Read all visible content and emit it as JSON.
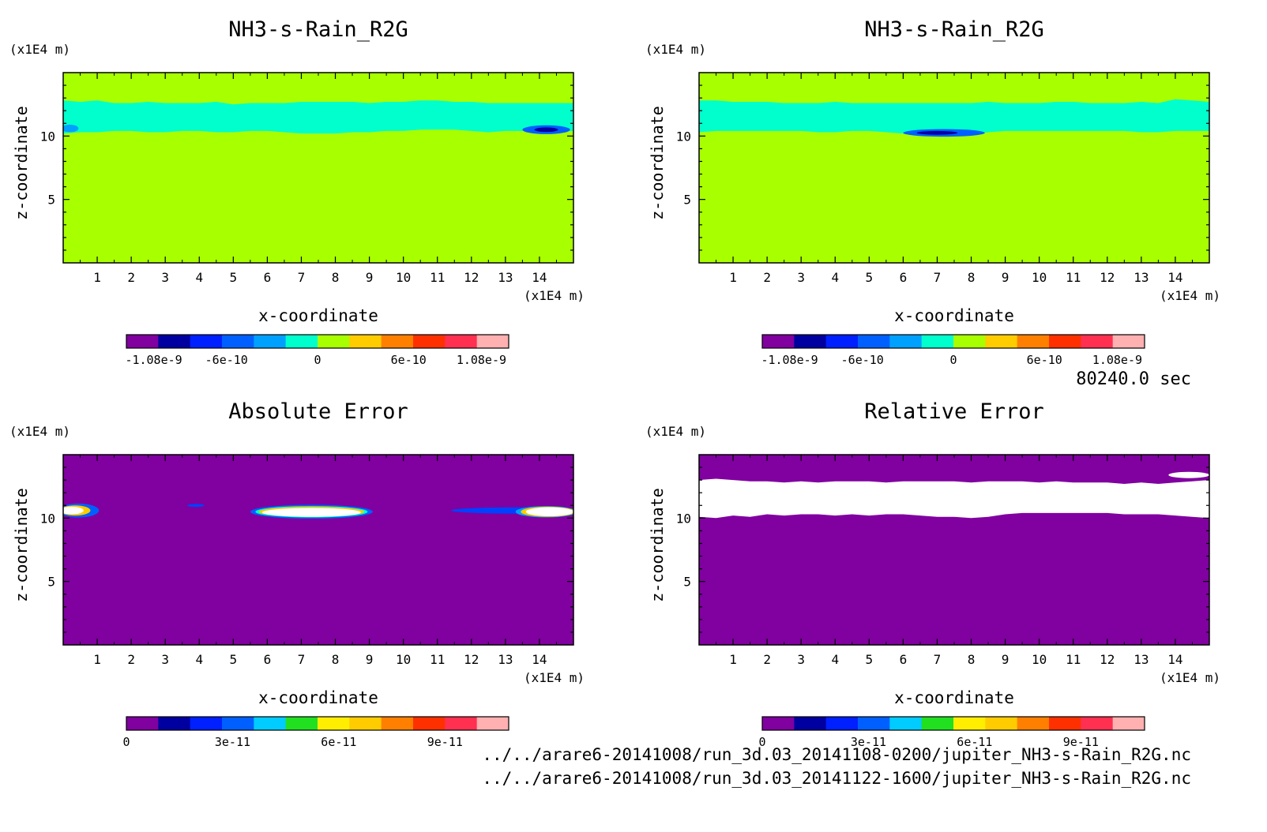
{
  "time_label": "80240.0 sec",
  "footer": {
    "file1": "../../arare6-20141008/run_3d.03_20141108-0200/jupiter_NH3-s-Rain_R2G.nc",
    "file2": "../../arare6-20141008/run_3d.03_20141122-1600/jupiter_NH3-s-Rain_R2G.nc"
  },
  "chart_data": [
    {
      "type": "heatmap",
      "title": "NH3-s-Rain_R2G",
      "xlabel": "x-coordinate",
      "ylabel": "z-coordinate",
      "x_unit": "(x1E4 m)",
      "y_unit": "(x1E4 m)",
      "xlim": [
        0,
        15
      ],
      "ylim": [
        0,
        15
      ],
      "x_ticks": [
        1,
        2,
        3,
        4,
        5,
        6,
        7,
        8,
        9,
        10,
        11,
        12,
        13,
        14
      ],
      "y_ticks": [
        5,
        10
      ],
      "background_color": "#a8ff00",
      "regions": [
        {
          "color": "#00ffcc",
          "x": [
            0,
            0.5,
            1,
            1.5,
            2,
            2.5,
            3,
            3.5,
            4,
            4.5,
            5,
            5.5,
            6,
            6.5,
            7,
            7.5,
            8,
            8.5,
            9,
            9.5,
            10,
            10.5,
            11,
            11.5,
            12,
            12.5,
            13,
            13.5,
            14,
            14.5,
            15
          ],
          "top": [
            12.8,
            12.7,
            12.8,
            12.6,
            12.6,
            12.7,
            12.6,
            12.6,
            12.6,
            12.7,
            12.5,
            12.6,
            12.6,
            12.6,
            12.7,
            12.7,
            12.7,
            12.7,
            12.6,
            12.7,
            12.7,
            12.8,
            12.8,
            12.7,
            12.7,
            12.6,
            12.6,
            12.6,
            12.6,
            12.6,
            12.6
          ],
          "bottom": [
            10.2,
            10.3,
            10.3,
            10.4,
            10.4,
            10.3,
            10.3,
            10.4,
            10.4,
            10.3,
            10.3,
            10.4,
            10.4,
            10.3,
            10.2,
            10.2,
            10.2,
            10.3,
            10.3,
            10.4,
            10.4,
            10.5,
            10.5,
            10.5,
            10.4,
            10.3,
            10.4,
            10.4,
            10.3,
            10.3,
            10.4
          ]
        },
        {
          "color": "#0060ff",
          "cx": 14.2,
          "cy": 10.5,
          "rx": 0.7,
          "ry": 0.35
        },
        {
          "color": "#0000a0",
          "cx": 14.2,
          "cy": 10.5,
          "rx": 0.35,
          "ry": 0.18
        },
        {
          "color": "#00a0ff",
          "cx": 0.2,
          "cy": 10.6,
          "rx": 0.25,
          "ry": 0.3
        }
      ],
      "colorbar": {
        "colors": [
          "#8000a0",
          "#0000a0",
          "#0020ff",
          "#0060ff",
          "#00a0ff",
          "#00ffcc",
          "#a8ff00",
          "#ffcc00",
          "#ff8000",
          "#ff3000",
          "#ff3050",
          "#ffb0b0"
        ],
        "tick_labels": [
          "-1.08e-9",
          "-6e-10",
          "0",
          "6e-10",
          "1.08e-9"
        ],
        "tick_values": [
          -1.08e-09,
          -6e-10,
          0,
          6e-10,
          1.08e-09
        ],
        "range": [
          -1.26e-09,
          1.26e-09
        ]
      }
    },
    {
      "type": "heatmap",
      "title": "NH3-s-Rain_R2G",
      "xlabel": "x-coordinate",
      "ylabel": "z-coordinate",
      "x_unit": "(x1E4 m)",
      "y_unit": "(x1E4 m)",
      "xlim": [
        0,
        15
      ],
      "ylim": [
        0,
        15
      ],
      "x_ticks": [
        1,
        2,
        3,
        4,
        5,
        6,
        7,
        8,
        9,
        10,
        11,
        12,
        13,
        14
      ],
      "y_ticks": [
        5,
        10
      ],
      "background_color": "#a8ff00",
      "regions": [
        {
          "color": "#00ffcc",
          "x": [
            0,
            0.5,
            1,
            1.5,
            2,
            2.5,
            3,
            3.5,
            4,
            4.5,
            5,
            5.5,
            6,
            6.5,
            7,
            7.5,
            8,
            8.5,
            9,
            9.5,
            10,
            10.5,
            11,
            11.5,
            12,
            12.5,
            13,
            13.5,
            14,
            14.5,
            15
          ],
          "top": [
            12.8,
            12.8,
            12.7,
            12.7,
            12.7,
            12.6,
            12.6,
            12.6,
            12.7,
            12.6,
            12.6,
            12.6,
            12.6,
            12.6,
            12.6,
            12.6,
            12.6,
            12.7,
            12.6,
            12.6,
            12.6,
            12.7,
            12.7,
            12.6,
            12.6,
            12.6,
            12.7,
            12.6,
            12.9,
            12.8,
            12.7
          ],
          "bottom": [
            10.3,
            10.4,
            10.4,
            10.4,
            10.4,
            10.4,
            10.4,
            10.3,
            10.3,
            10.4,
            10.4,
            10.3,
            10.2,
            10.1,
            10.0,
            10.0,
            10.1,
            10.3,
            10.4,
            10.4,
            10.4,
            10.4,
            10.4,
            10.4,
            10.4,
            10.4,
            10.3,
            10.3,
            10.4,
            10.4,
            10.4
          ]
        },
        {
          "color": "#0060ff",
          "cx": 7.2,
          "cy": 10.25,
          "rx": 1.2,
          "ry": 0.3
        },
        {
          "color": "#0000a0",
          "cx": 7.0,
          "cy": 10.25,
          "rx": 0.6,
          "ry": 0.15
        }
      ],
      "colorbar": {
        "colors": [
          "#8000a0",
          "#0000a0",
          "#0020ff",
          "#0060ff",
          "#00a0ff",
          "#00ffcc",
          "#a8ff00",
          "#ffcc00",
          "#ff8000",
          "#ff3000",
          "#ff3050",
          "#ffb0b0"
        ],
        "tick_labels": [
          "-1.08e-9",
          "-6e-10",
          "0",
          "6e-10",
          "1.08e-9"
        ],
        "tick_values": [
          -1.08e-09,
          -6e-10,
          0,
          6e-10,
          1.08e-09
        ],
        "range": [
          -1.26e-09,
          1.26e-09
        ]
      }
    },
    {
      "type": "heatmap",
      "title": "Absolute Error",
      "xlabel": "x-coordinate",
      "ylabel": "z-coordinate",
      "x_unit": "(x1E4 m)",
      "y_unit": "(x1E4 m)",
      "xlim": [
        0,
        15
      ],
      "ylim": [
        0,
        15
      ],
      "x_ticks": [
        1,
        2,
        3,
        4,
        5,
        6,
        7,
        8,
        9,
        10,
        11,
        12,
        13,
        14
      ],
      "y_ticks": [
        5,
        10
      ],
      "background_color": "#8000a0",
      "regions": [
        {
          "color": "#0060ff",
          "cx": 0.45,
          "cy": 10.6,
          "rx": 0.6,
          "ry": 0.55
        },
        {
          "color": "#ffcc00",
          "cx": 0.35,
          "cy": 10.6,
          "rx": 0.45,
          "ry": 0.4
        },
        {
          "color": "#ffffff",
          "cx": 0.25,
          "cy": 10.6,
          "rx": 0.35,
          "ry": 0.3
        },
        {
          "color": "#0040ff",
          "cx": 3.9,
          "cy": 11.0,
          "rx": 0.25,
          "ry": 0.12
        },
        {
          "color": "#0060ff",
          "cx": 7.3,
          "cy": 10.5,
          "rx": 1.8,
          "ry": 0.55
        },
        {
          "color": "#00ffcc",
          "cx": 7.3,
          "cy": 10.5,
          "rx": 1.65,
          "ry": 0.45
        },
        {
          "color": "#ffcc00",
          "cx": 7.3,
          "cy": 10.5,
          "rx": 1.55,
          "ry": 0.4
        },
        {
          "color": "#ffffff",
          "cx": 7.3,
          "cy": 10.45,
          "rx": 1.45,
          "ry": 0.35
        },
        {
          "color": "#0040ff",
          "cx": 13.3,
          "cy": 10.6,
          "rx": 1.9,
          "ry": 0.25
        },
        {
          "color": "#00a0ff",
          "cx": 14.2,
          "cy": 10.5,
          "rx": 0.9,
          "ry": 0.45
        },
        {
          "color": "#ffcc00",
          "cx": 14.25,
          "cy": 10.5,
          "rx": 0.8,
          "ry": 0.4
        },
        {
          "color": "#ffffff",
          "cx": 14.3,
          "cy": 10.5,
          "rx": 0.7,
          "ry": 0.35
        }
      ],
      "colorbar": {
        "colors": [
          "#8000a0",
          "#0000a0",
          "#0020ff",
          "#0060ff",
          "#00ccff",
          "#20e020",
          "#ffee00",
          "#ffcc00",
          "#ff8000",
          "#ff3000",
          "#ff3050",
          "#ffb0b0"
        ],
        "tick_labels": [
          "0",
          "3e-11",
          "6e-11",
          "9e-11"
        ],
        "tick_values": [
          0,
          3e-11,
          6e-11,
          9e-11
        ],
        "range": [
          0,
          1.08e-10
        ]
      }
    },
    {
      "type": "heatmap",
      "title": "Relative Error",
      "xlabel": "x-coordinate",
      "ylabel": "z-coordinate",
      "x_unit": "(x1E4 m)",
      "y_unit": "(x1E4 m)",
      "xlim": [
        0,
        15
      ],
      "ylim": [
        0,
        15
      ],
      "x_ticks": [
        1,
        2,
        3,
        4,
        5,
        6,
        7,
        8,
        9,
        10,
        11,
        12,
        13,
        14
      ],
      "y_ticks": [
        5,
        10
      ],
      "background_color": "#8000a0",
      "regions": [
        {
          "color": "#ffffff",
          "x": [
            0,
            0.5,
            1,
            1.5,
            2,
            2.5,
            3,
            3.5,
            4,
            4.5,
            5,
            5.5,
            6,
            6.5,
            7,
            7.5,
            8,
            8.5,
            9,
            9.5,
            10,
            10.5,
            11,
            11.5,
            12,
            12.5,
            13,
            13.5,
            14,
            14.5,
            15
          ],
          "top": [
            13.0,
            13.1,
            13.0,
            12.9,
            12.9,
            12.8,
            12.9,
            12.8,
            12.9,
            12.9,
            12.9,
            12.8,
            12.9,
            12.9,
            12.9,
            12.9,
            12.8,
            12.9,
            12.9,
            12.9,
            12.8,
            12.9,
            12.8,
            12.8,
            12.8,
            12.7,
            12.8,
            12.7,
            12.8,
            12.9,
            13.0
          ],
          "bottom": [
            10.1,
            10.0,
            10.2,
            10.1,
            10.3,
            10.2,
            10.3,
            10.3,
            10.2,
            10.3,
            10.2,
            10.3,
            10.3,
            10.2,
            10.1,
            10.1,
            10.0,
            10.1,
            10.3,
            10.4,
            10.4,
            10.4,
            10.4,
            10.4,
            10.4,
            10.3,
            10.3,
            10.3,
            10.2,
            10.1,
            10.0
          ]
        },
        {
          "color": "#ffffff",
          "cx": 14.4,
          "cy": 13.4,
          "rx": 0.6,
          "ry": 0.25
        }
      ],
      "colorbar": {
        "colors": [
          "#8000a0",
          "#0000a0",
          "#0020ff",
          "#0060ff",
          "#00ccff",
          "#20e020",
          "#ffee00",
          "#ffcc00",
          "#ff8000",
          "#ff3000",
          "#ff3050",
          "#ffb0b0"
        ],
        "tick_labels": [
          "0",
          "3e-11",
          "6e-11",
          "9e-11"
        ],
        "tick_values": [
          0,
          3e-11,
          6e-11,
          9e-11
        ],
        "range": [
          0,
          1.08e-10
        ]
      }
    }
  ]
}
